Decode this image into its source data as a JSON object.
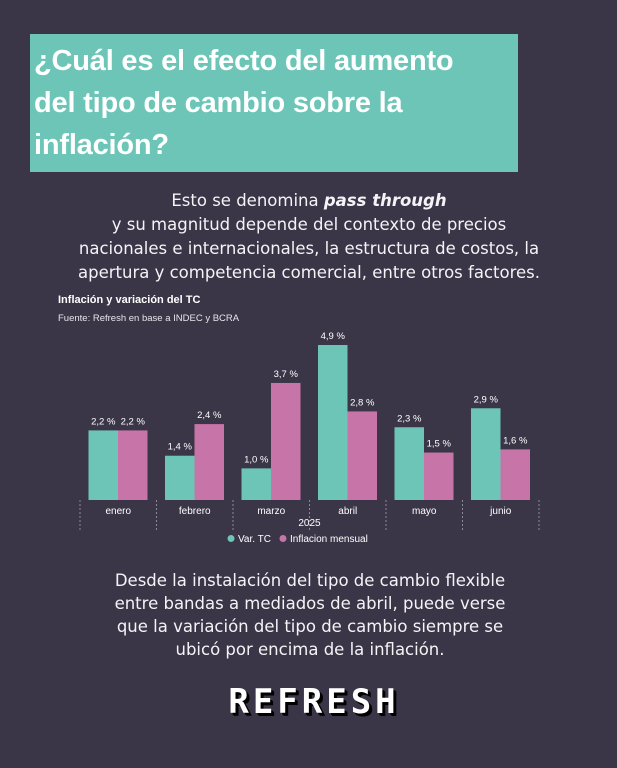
{
  "header": {
    "title_line1": "¿Cuál es el efecto del aumento",
    "title_line2": "del tipo de cambio sobre la",
    "title_line3": "inflación?"
  },
  "intro": {
    "line1_prefix": "Esto se denomina",
    "line1_emphasis": "pass through",
    "line2": "y su magnitud depende del contexto de precios",
    "line3": "nacionales e internacionales, la estructura de costos, la",
    "line4": "apertura y competencia comercial, entre otros factores."
  },
  "chart_data": {
    "type": "bar",
    "title": "Inflación y variación del TC",
    "subtitle": "Fuente: Refresh en base a INDEC y BCRA",
    "categories": [
      "enero",
      "febrero",
      "marzo",
      "abril",
      "mayo",
      "junio"
    ],
    "xlabel": "2025",
    "ylabel": "",
    "ylim": [
      0,
      5
    ],
    "grid": false,
    "legend_position": "bottom",
    "series": [
      {
        "name": "Var. TC",
        "color": "#6cc5b7",
        "values": [
          2.2,
          1.4,
          1.0,
          4.9,
          2.3,
          2.9
        ],
        "labels": [
          "2,2 %",
          "1,4 %",
          "1,0 %",
          "4,9 %",
          "2,3 %",
          "2,9 %"
        ]
      },
      {
        "name": "Inflacion mensual",
        "color": "#c774a9",
        "values": [
          2.2,
          2.4,
          3.7,
          2.8,
          1.5,
          1.6
        ],
        "labels": [
          "2,2 %",
          "2,4 %",
          "3,7 %",
          "2,8 %",
          "1,5 %",
          "1,6 %"
        ]
      }
    ]
  },
  "outro": {
    "line1": "Desde la instalación del tipo de cambio flexible",
    "line2": "entre bandas a mediados de abril, puede verse",
    "line3": "que la variación del tipo de cambio siempre se",
    "line4": "ubicó por encima de la inflación."
  },
  "logo": {
    "text": "REFRESH"
  }
}
